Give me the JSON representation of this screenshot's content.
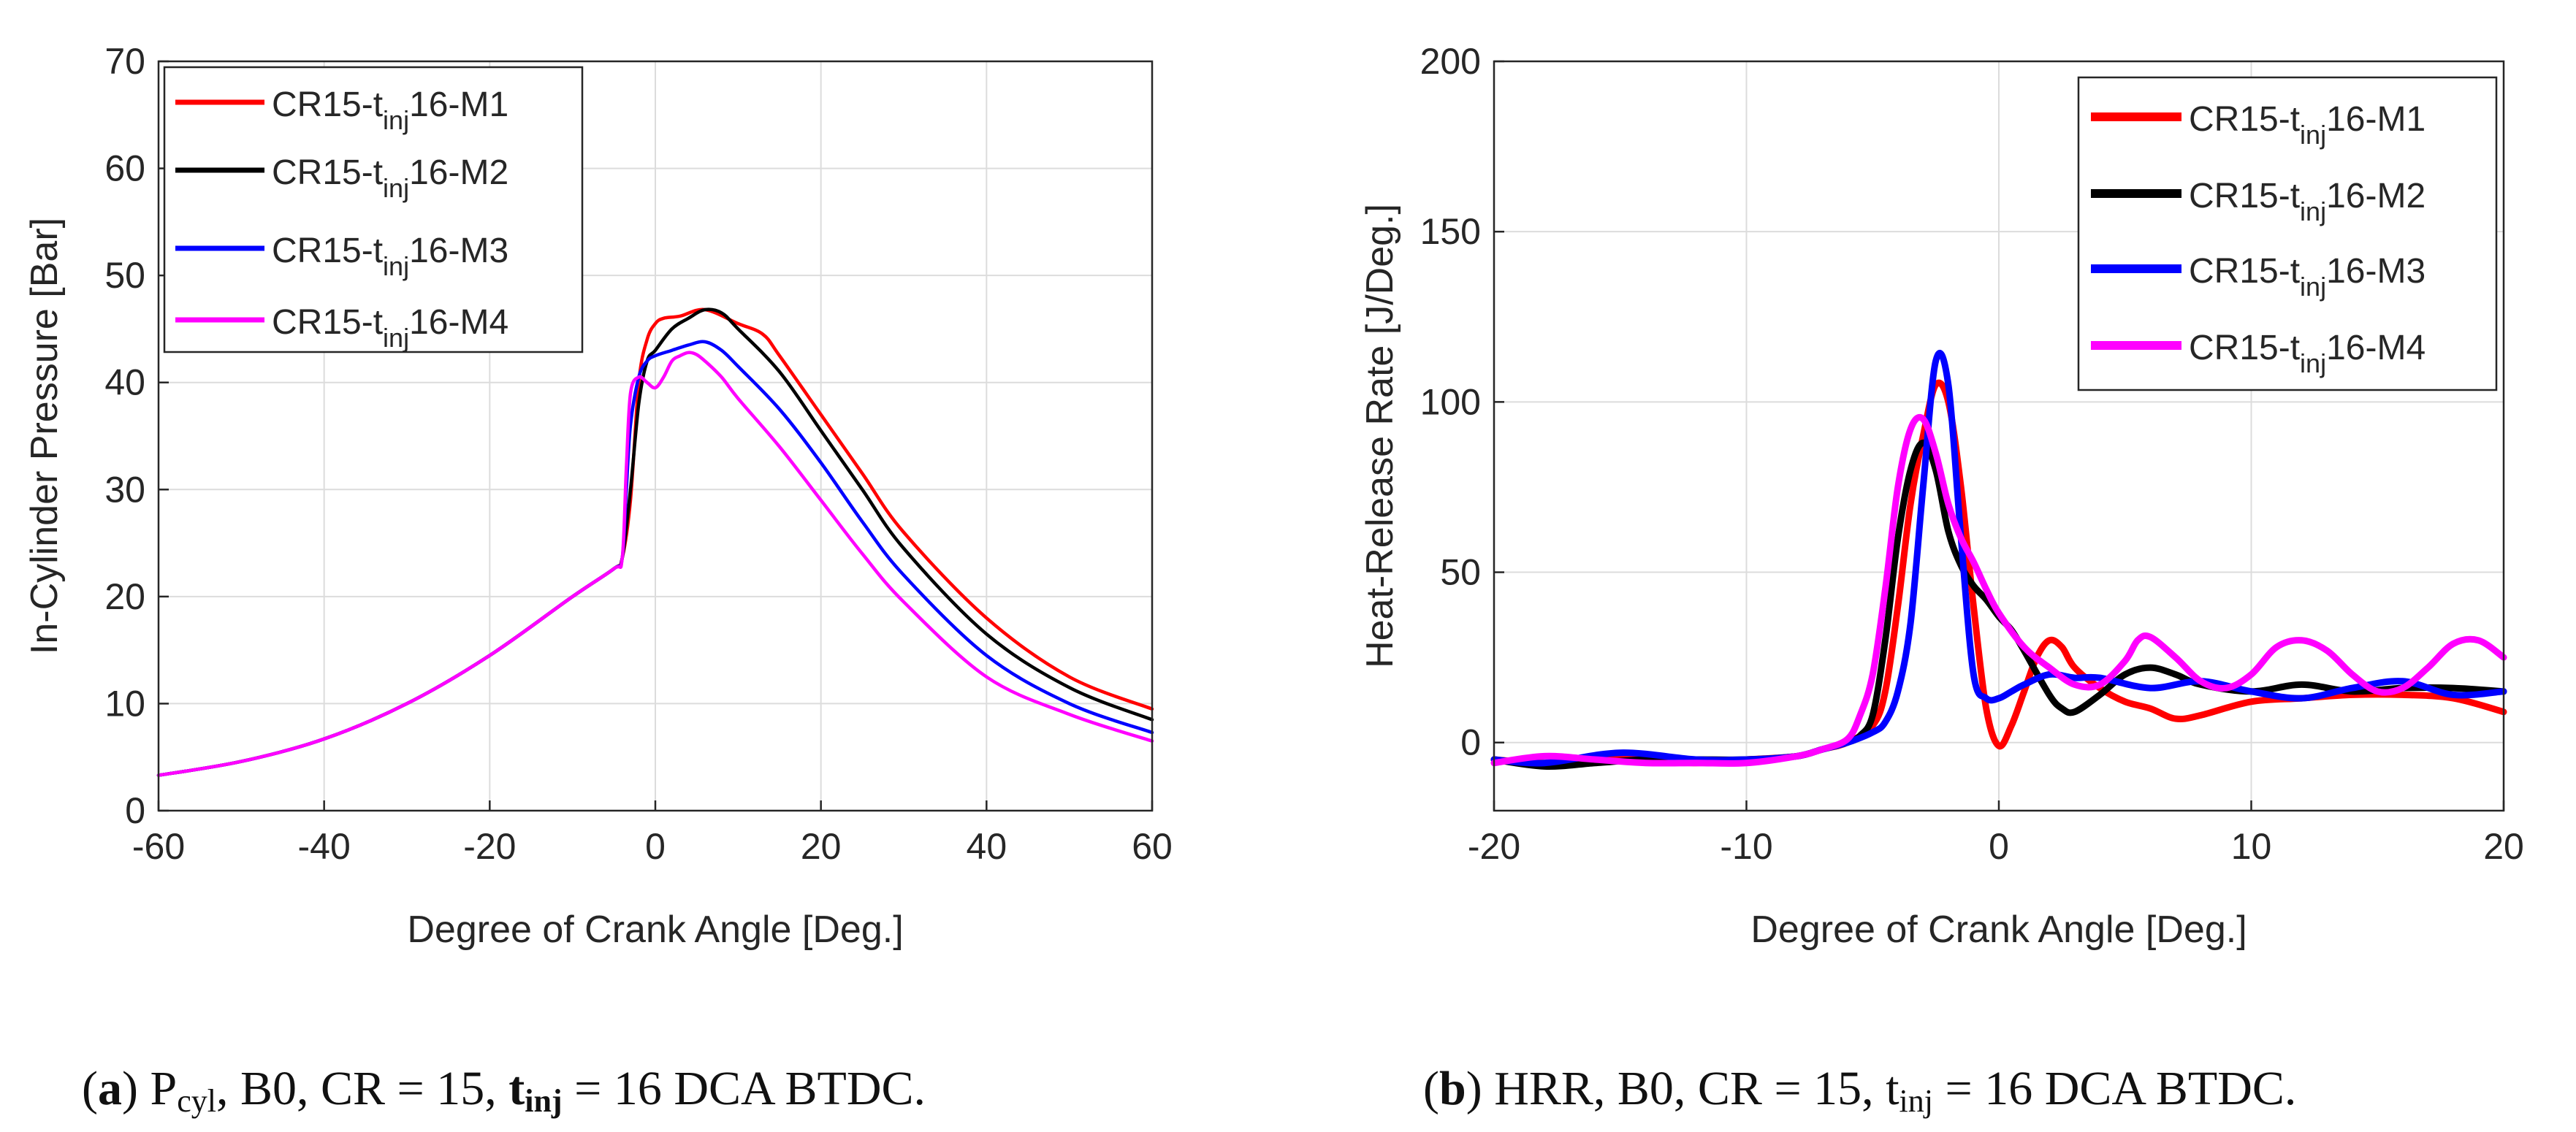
{
  "figure": {
    "panels": [
      {
        "id": "a",
        "caption": {
          "label": "a",
          "pre": "P",
          "sub": "cyl",
          "mid": ", B0, CR = 15, ",
          "tvar": "t",
          "tsub": "inj",
          "post": " = 16 DCA BTDC."
        }
      },
      {
        "id": "b",
        "caption": {
          "label": "b",
          "pre": "HRR, B0, CR = 15, ",
          "tvar": "t",
          "tsub": "inj",
          "post": " = 16 DCA BTDC."
        }
      }
    ]
  },
  "chart_data": [
    {
      "type": "line",
      "title": "",
      "xlabel": "Degree of Crank Angle [Deg.]",
      "ylabel": "In-Cylinder Pressure [Bar]",
      "xlim": [
        -60,
        60
      ],
      "ylim": [
        0,
        70
      ],
      "xticks": [
        -60,
        -40,
        -20,
        0,
        20,
        40,
        60
      ],
      "yticks": [
        0,
        10,
        20,
        30,
        40,
        50,
        60,
        70
      ],
      "xtick_labels": [
        "-60",
        "-40",
        "-20",
        "0",
        "20",
        "40",
        "60"
      ],
      "ytick_labels": [
        "0",
        "10",
        "20",
        "30",
        "40",
        "50",
        "60",
        "70"
      ],
      "grid": true,
      "legend_position": "top-left",
      "series": [
        {
          "name": "CR15-tinj16-M1",
          "label_main": "CR15-t",
          "label_sub": "inj",
          "label_end": "16-M1",
          "color": "#ff0000",
          "x": [
            -60,
            -50,
            -40,
            -30,
            -20,
            -10,
            -5,
            -4,
            -3,
            -2,
            -1,
            0,
            1,
            3,
            6,
            10,
            13,
            15,
            20,
            25,
            30,
            40,
            50,
            60
          ],
          "y": [
            3.3,
            4.6,
            6.7,
            10.0,
            14.5,
            20.0,
            22.6,
            23.6,
            29.0,
            40.0,
            44.0,
            45.5,
            46.0,
            46.2,
            46.8,
            45.5,
            44.5,
            42.5,
            37.0,
            31.5,
            26.0,
            18.0,
            12.5,
            9.5
          ]
        },
        {
          "name": "CR15-tinj16-M2",
          "label_main": "CR15-t",
          "label_sub": "inj",
          "label_end": "16-M2",
          "color": "#000000",
          "x": [
            -60,
            -50,
            -40,
            -30,
            -20,
            -10,
            -5,
            -4,
            -3,
            -2,
            -1,
            0,
            2,
            4,
            6,
            8,
            10,
            15,
            20,
            25,
            30,
            40,
            50,
            60
          ],
          "y": [
            3.3,
            4.6,
            6.7,
            10.0,
            14.5,
            20.0,
            22.6,
            23.6,
            30.0,
            38.0,
            42.0,
            43.0,
            45.0,
            46.0,
            46.8,
            46.5,
            45.0,
            41.0,
            35.5,
            30.0,
            24.5,
            16.5,
            11.5,
            8.5
          ]
        },
        {
          "name": "CR15-tinj16-M3",
          "label_main": "CR15-t",
          "label_sub": "inj",
          "label_end": "16-M3",
          "color": "#0000ff",
          "x": [
            -60,
            -50,
            -40,
            -30,
            -20,
            -10,
            -5,
            -4,
            -3.5,
            -3,
            -2,
            -1,
            0,
            2,
            4,
            6,
            8,
            10,
            15,
            20,
            25,
            30,
            40,
            50,
            60
          ],
          "y": [
            3.3,
            4.6,
            6.7,
            10.0,
            14.5,
            20.0,
            22.6,
            23.6,
            30.0,
            36.0,
            40.5,
            42.0,
            42.5,
            43.0,
            43.5,
            43.8,
            43.0,
            41.5,
            37.5,
            32.5,
            27.0,
            22.0,
            14.5,
            10.0,
            7.3
          ]
        },
        {
          "name": "CR15-tinj16-M4",
          "label_main": "CR15-t",
          "label_sub": "inj",
          "label_end": "16-M4",
          "color": "#ff00ff",
          "x": [
            -60,
            -50,
            -40,
            -30,
            -20,
            -10,
            -5,
            -4,
            -3.5,
            -3,
            -2,
            -1,
            0,
            1,
            2,
            3,
            4,
            5,
            6,
            8,
            10,
            15,
            20,
            25,
            30,
            40,
            50,
            60
          ],
          "y": [
            3.3,
            4.6,
            6.7,
            10.0,
            14.5,
            20.0,
            22.6,
            23.6,
            32.0,
            39.0,
            40.5,
            40.0,
            39.5,
            40.5,
            42.0,
            42.5,
            42.8,
            42.6,
            42.0,
            40.5,
            38.5,
            34.0,
            29.0,
            24.0,
            19.5,
            12.5,
            9.0,
            6.5
          ]
        }
      ]
    },
    {
      "type": "line",
      "title": "",
      "xlabel": "Degree of Crank Angle [Deg.]",
      "ylabel": "Heat-Release Rate [J/Deg.]",
      "xlim": [
        -20,
        20
      ],
      "ylim": [
        -20,
        200
      ],
      "xticks": [
        -20,
        -10,
        0,
        10,
        20
      ],
      "yticks": [
        0,
        50,
        100,
        150,
        200
      ],
      "xtick_labels": [
        "-20",
        "-10",
        "0",
        "10",
        "20"
      ],
      "ytick_labels": [
        "0",
        "50",
        "100",
        "150",
        "200"
      ],
      "grid": true,
      "legend_position": "top-right",
      "series": [
        {
          "name": "CR15-tinj16-M1",
          "label_main": "CR15-t",
          "label_sub": "inj",
          "label_end": "16-M1",
          "color": "#ff0000",
          "x": [
            -20,
            -18,
            -16,
            -14,
            -12,
            -10,
            -8,
            -7,
            -6,
            -5,
            -4.5,
            -4,
            -3.5,
            -3,
            -2.5,
            -2,
            -1.5,
            -1,
            -0.5,
            0,
            0.5,
            1,
            1.5,
            2,
            2.5,
            3,
            4,
            5,
            6,
            7,
            8,
            10,
            12,
            14,
            16,
            18,
            20
          ],
          "y": [
            -5,
            -6,
            -5,
            -5,
            -6,
            -5,
            -4,
            -2,
            0,
            5,
            15,
            40,
            70,
            90,
            105,
            100,
            75,
            40,
            10,
            -1,
            5,
            15,
            25,
            30,
            28,
            22,
            16,
            12,
            10,
            7,
            8,
            12,
            13,
            14,
            14,
            13,
            9
          ]
        },
        {
          "name": "CR15-tinj16-M2",
          "label_main": "CR15-t",
          "label_sub": "inj",
          "label_end": "16-M2",
          "color": "#000000",
          "x": [
            -20,
            -18,
            -16,
            -14,
            -12,
            -10,
            -8,
            -7,
            -6,
            -5.5,
            -5,
            -4.5,
            -4,
            -3.5,
            -3,
            -2.5,
            -2,
            -1.5,
            -1,
            -0.5,
            0,
            0.5,
            1,
            2,
            2.5,
            3,
            4,
            5,
            6,
            7,
            8,
            10,
            12,
            14,
            16,
            18,
            20
          ],
          "y": [
            -5,
            -7,
            -6,
            -5,
            -5,
            -5,
            -4,
            -2,
            0,
            2,
            8,
            30,
            60,
            80,
            88,
            80,
            62,
            52,
            46,
            42,
            37,
            33,
            27,
            14,
            10,
            9,
            14,
            20,
            22,
            20,
            17,
            15,
            17,
            15,
            16,
            16,
            15
          ]
        },
        {
          "name": "CR15-tinj16-M3",
          "label_main": "CR15-t",
          "label_sub": "inj",
          "label_end": "16-M3",
          "color": "#0000ff",
          "x": [
            -20,
            -18,
            -15,
            -12,
            -10,
            -8,
            -7,
            -6,
            -5,
            -4.5,
            -4,
            -3.5,
            -3,
            -2.5,
            -2,
            -1.5,
            -1,
            -0.5,
            0,
            0.5,
            1,
            2,
            3,
            4,
            6,
            8,
            10,
            12,
            14,
            16,
            18,
            20
          ],
          "y": [
            -5,
            -6,
            -3,
            -5,
            -5,
            -4,
            -2,
            0,
            3,
            6,
            15,
            35,
            75,
            112,
            105,
            60,
            20,
            13,
            13,
            15,
            17,
            20,
            19,
            19,
            16,
            18,
            15,
            13,
            16,
            18,
            14,
            15
          ]
        },
        {
          "name": "CR15-tinj16-M4",
          "label_main": "CR15-t",
          "label_sub": "inj",
          "label_end": "16-M4",
          "color": "#ff00ff",
          "x": [
            -20,
            -18,
            -16,
            -14,
            -12,
            -10,
            -8,
            -7,
            -6,
            -5.5,
            -5,
            -4.5,
            -4,
            -3.5,
            -3,
            -2.5,
            -2,
            -1.5,
            -1,
            -0.5,
            0,
            1,
            2,
            3,
            4,
            5,
            5.5,
            6,
            7,
            8,
            9,
            10,
            11,
            12,
            13,
            14,
            15,
            16,
            17,
            18,
            19,
            20
          ],
          "y": [
            -6,
            -4,
            -5,
            -6,
            -6,
            -6,
            -4,
            -2,
            1,
            8,
            20,
            45,
            75,
            92,
            95,
            85,
            70,
            60,
            53,
            45,
            38,
            28,
            22,
            17,
            17,
            24,
            30,
            31,
            25,
            18,
            16,
            20,
            28,
            30,
            27,
            20,
            15,
            16,
            22,
            29,
            30,
            25
          ]
        }
      ]
    }
  ]
}
